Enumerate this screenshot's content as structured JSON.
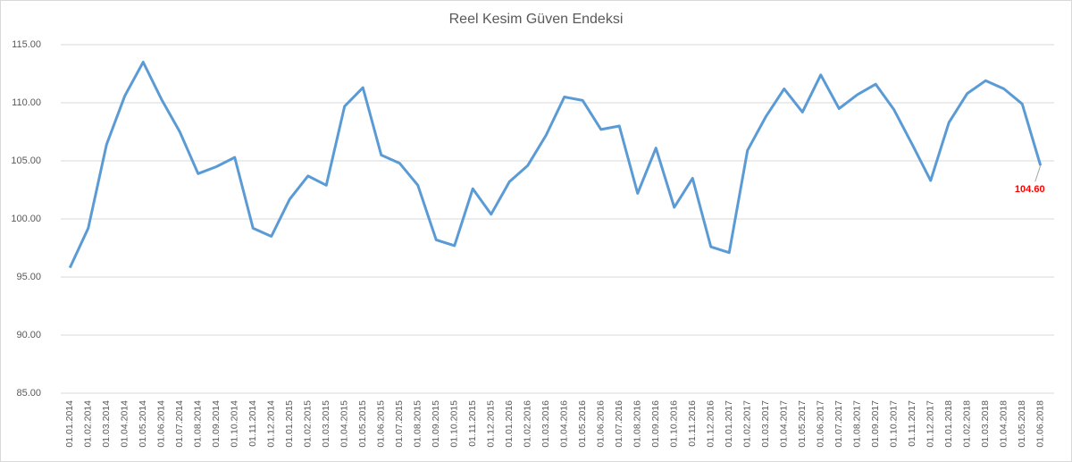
{
  "chart_data": {
    "type": "line",
    "title": "Reel Kesim Güven Endeksi",
    "categories": [
      "01.01.2014",
      "01.02.2014",
      "01.03.2014",
      "01.04.2014",
      "01.05.2014",
      "01.06.2014",
      "01.07.2014",
      "01.08.2014",
      "01.09.2014",
      "01.10.2014",
      "01.11.2014",
      "01.12.2014",
      "01.01.2015",
      "01.02.2015",
      "01.03.2015",
      "01.04.2015",
      "01.05.2015",
      "01.06.2015",
      "01.07.2015",
      "01.08.2015",
      "01.09.2015",
      "01.10.2015",
      "01.11.2015",
      "01.12.2015",
      "01.01.2016",
      "01.02.2016",
      "01.03.2016",
      "01.04.2016",
      "01.05.2016",
      "01.06.2016",
      "01.07.2016",
      "01.08.2016",
      "01.09.2016",
      "01.10.2016",
      "01.11.2016",
      "01.12.2016",
      "01.01.2017",
      "01.02.2017",
      "01.03.2017",
      "01.04.2017",
      "01.05.2017",
      "01.06.2017",
      "01.07.2017",
      "01.08.2017",
      "01.09.2017",
      "01.10.2017",
      "01.11.2017",
      "01.12.2017",
      "01.01.2018",
      "01.02.2018",
      "01.03.2018",
      "01.04.2018",
      "01.05.2018",
      "01.06.2018"
    ],
    "series": [
      {
        "name": "Reel Kesim Güven Endeksi",
        "color": "#5b9bd5",
        "values": [
          95.8,
          99.2,
          106.4,
          110.6,
          113.5,
          110.3,
          107.5,
          103.9,
          104.5,
          105.3,
          99.2,
          98.5,
          101.7,
          103.7,
          102.9,
          109.7,
          111.3,
          105.5,
          104.8,
          102.9,
          98.2,
          97.7,
          102.6,
          100.4,
          103.2,
          104.6,
          107.2,
          110.5,
          110.2,
          107.7,
          108.0,
          102.2,
          106.1,
          101.0,
          103.5,
          97.6,
          97.1,
          105.9,
          108.8,
          111.2,
          109.2,
          112.4,
          109.5,
          110.7,
          111.6,
          109.4,
          106.4,
          103.3,
          108.3,
          110.8,
          111.9,
          111.2,
          109.9,
          104.6
        ],
        "value_labels": [
          null,
          null,
          null,
          null,
          null,
          null,
          null,
          null,
          null,
          null,
          null,
          null,
          null,
          null,
          null,
          null,
          null,
          null,
          null,
          null,
          null,
          null,
          null,
          null,
          null,
          null,
          null,
          null,
          null,
          null,
          null,
          null,
          null,
          null,
          null,
          null,
          null,
          null,
          null,
          null,
          null,
          null,
          null,
          null,
          null,
          null,
          null,
          null,
          null,
          null,
          null,
          null,
          null,
          "104.60"
        ]
      }
    ],
    "ylim": [
      85,
      115
    ],
    "yticks": [
      {
        "value": 85,
        "label": "85.00"
      },
      {
        "value": 90,
        "label": "90.00"
      },
      {
        "value": 95,
        "label": "95.00"
      },
      {
        "value": 100,
        "label": "100.00"
      },
      {
        "value": 105,
        "label": "105.00"
      },
      {
        "value": 110,
        "label": "110.00"
      },
      {
        "value": 115,
        "label": "115.00"
      }
    ],
    "grid": true,
    "value_label_color": "#ff0000"
  }
}
